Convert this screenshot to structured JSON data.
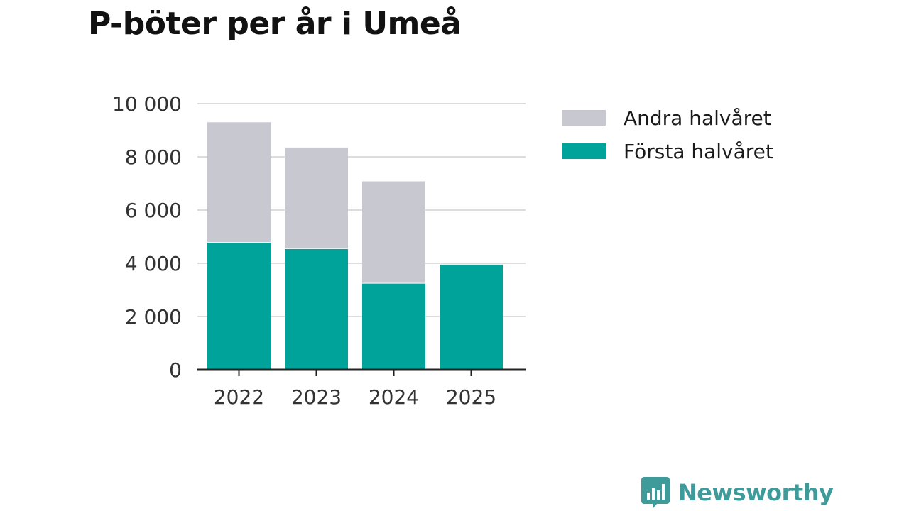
{
  "title": "P-böter per år i Umeå",
  "colors": {
    "first_half": "#00a39a",
    "second_half": "#c8c8d0",
    "grid": "#dcdcdc",
    "axis": "#222222"
  },
  "chart_data": {
    "type": "bar",
    "stacked": true,
    "title": "P-böter per år i Umeå",
    "categories": [
      "2022",
      "2023",
      "2024",
      "2025"
    ],
    "series": [
      {
        "name": "Första halvåret",
        "color": "#00a39a",
        "values": [
          4780,
          4550,
          3250,
          3950
        ]
      },
      {
        "name": "Andra halvåret",
        "color": "#c8c8d0",
        "values": [
          4520,
          3800,
          3830,
          0
        ]
      }
    ],
    "y_ticks": [
      0,
      2000,
      4000,
      6000,
      8000,
      10000
    ],
    "y_tick_labels": [
      "0",
      "2 000",
      "4 000",
      "6 000",
      "8 000",
      "10 000"
    ],
    "ylim": [
      0,
      10000
    ],
    "xlabel": "",
    "ylabel": "",
    "grid": true,
    "legend": {
      "placement": "top-right",
      "items": [
        "Andra halvåret",
        "Första halvåret"
      ]
    }
  },
  "brand": {
    "name": "Newsworthy",
    "icon": "bar-chart-bubble-icon"
  }
}
